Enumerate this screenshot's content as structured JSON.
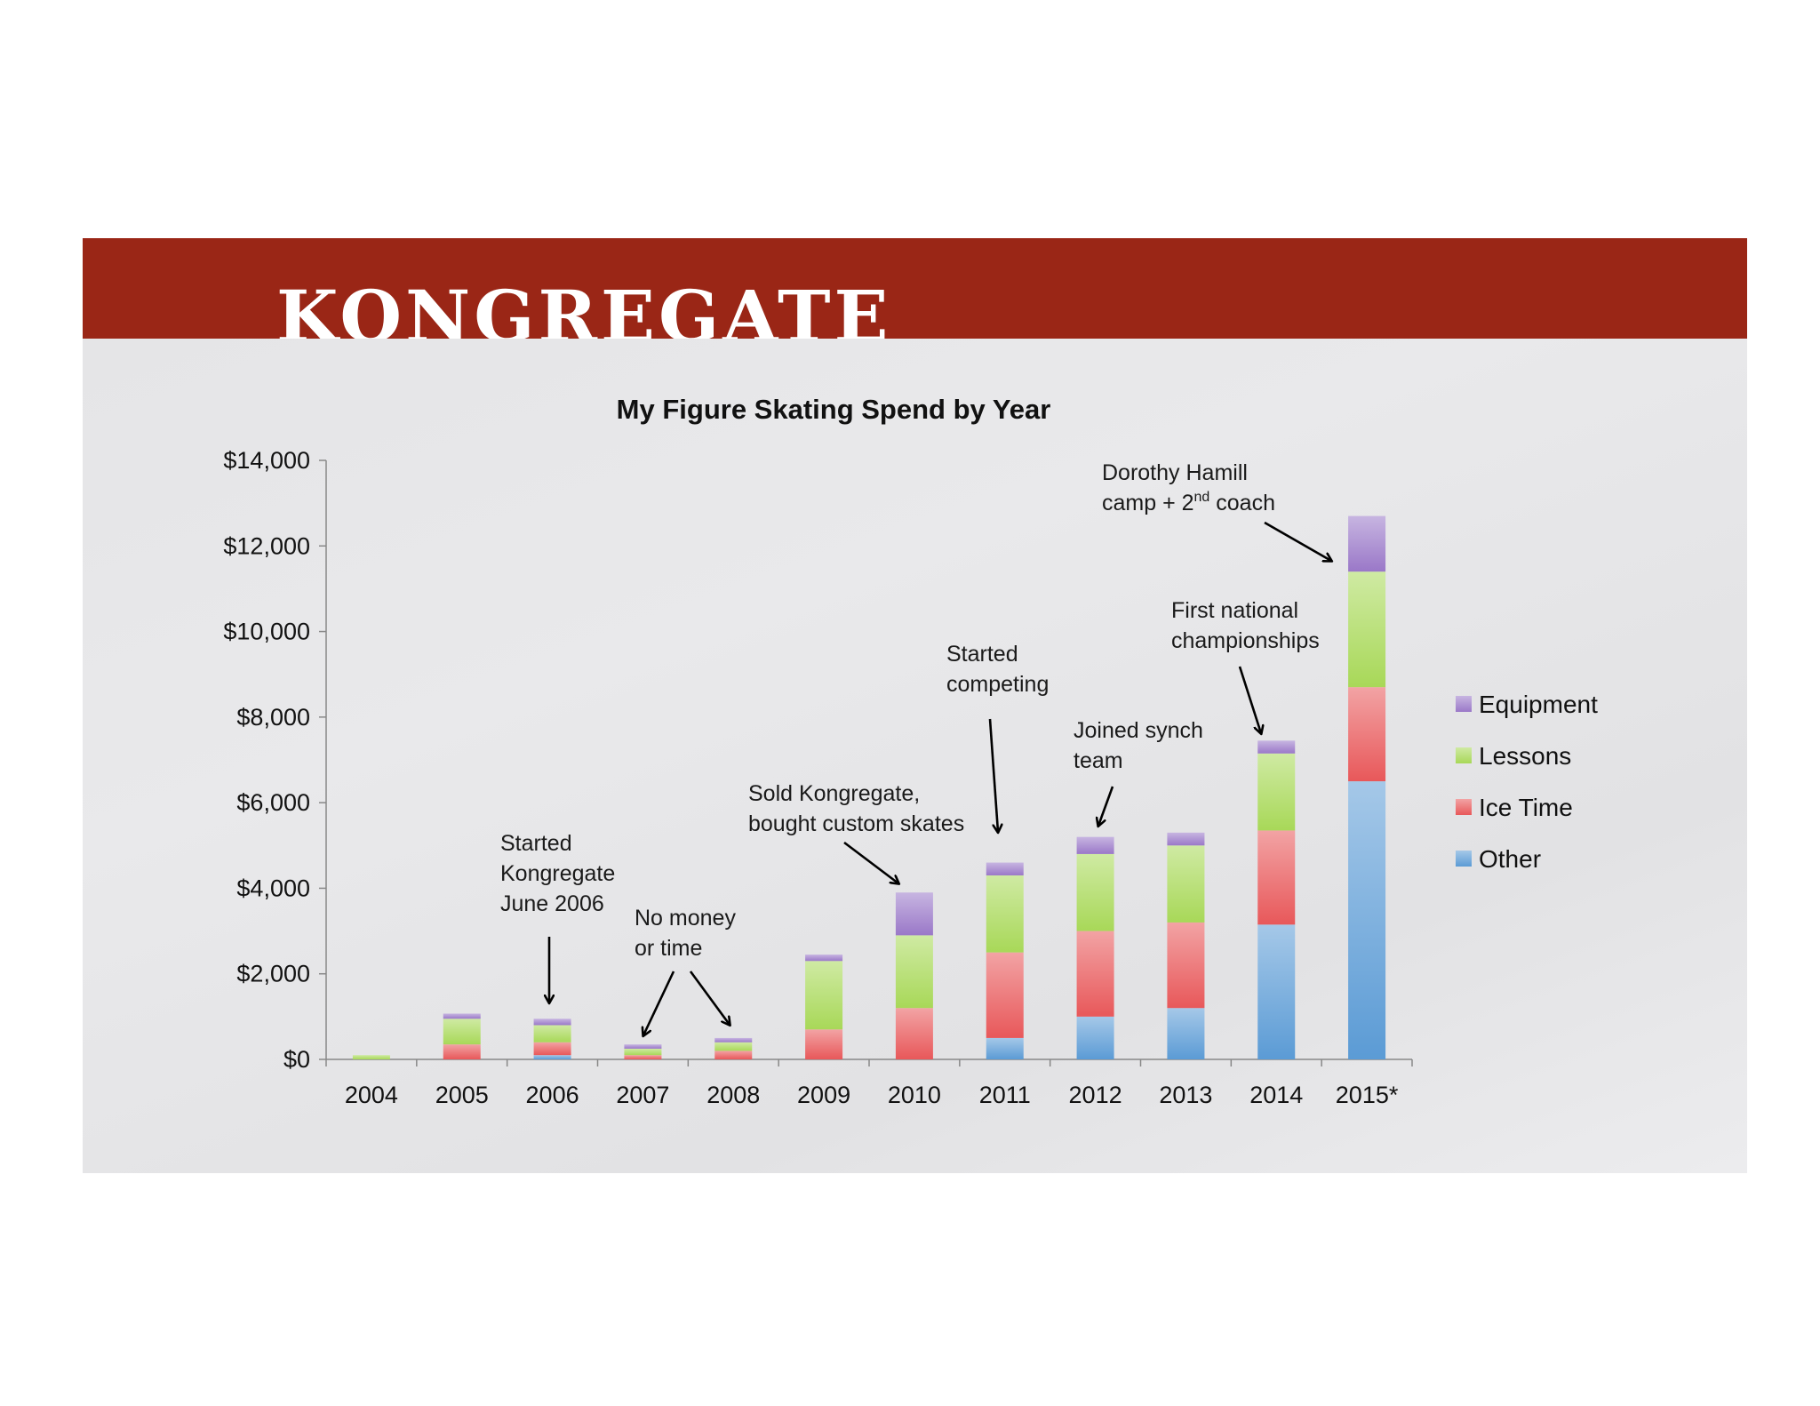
{
  "brand": {
    "logo_text": "KONGREGATE",
    "header_color": "#9a2616"
  },
  "chart_data": {
    "type": "bar",
    "stacked": true,
    "title": "My Figure Skating Spend by Year",
    "xlabel": "",
    "ylabel": "",
    "ylim": [
      0,
      14000
    ],
    "yticks": [
      0,
      2000,
      4000,
      6000,
      8000,
      10000,
      12000,
      14000
    ],
    "ytick_labels": [
      "$0",
      "$2,000",
      "$4,000",
      "$6,000",
      "$8,000",
      "$10,000",
      "$12,000",
      "$14,000"
    ],
    "grid": false,
    "legend_position": "right",
    "categories": [
      "2004",
      "2005",
      "2006",
      "2007",
      "2008",
      "2009",
      "2010",
      "2011",
      "2012",
      "2013",
      "2014",
      "2015*"
    ],
    "series": [
      {
        "name": "Other",
        "color": "#5b9bd5",
        "values": [
          0,
          0,
          100,
          0,
          0,
          0,
          0,
          500,
          1000,
          1200,
          3150,
          6500
        ]
      },
      {
        "name": "Ice Time",
        "color": "#e8585a",
        "values": [
          0,
          350,
          300,
          100,
          200,
          700,
          1200,
          2000,
          2000,
          2000,
          2200,
          2200
        ]
      },
      {
        "name": "Lessons",
        "color": "#a8d858",
        "values": [
          100,
          600,
          400,
          150,
          200,
          1600,
          1700,
          1800,
          1800,
          1800,
          1800,
          2700
        ]
      },
      {
        "name": "Equipment",
        "color": "#9a78c8",
        "values": [
          0,
          120,
          150,
          100,
          100,
          150,
          1000,
          300,
          400,
          300,
          300,
          1300
        ]
      }
    ],
    "annotations": [
      {
        "lines": [
          "Started",
          "Kongregate",
          "June 2006"
        ],
        "target": "2006"
      },
      {
        "lines": [
          "No money",
          "or time"
        ],
        "target": [
          "2007",
          "2008"
        ]
      },
      {
        "lines": [
          "Sold Kongregate,",
          "bought custom skates"
        ],
        "target": "2010"
      },
      {
        "lines": [
          "Started",
          "competing"
        ],
        "target": "2011"
      },
      {
        "lines": [
          "Joined synch",
          "team"
        ],
        "target": "2012"
      },
      {
        "lines": [
          "First national",
          "championships"
        ],
        "target": "2014"
      },
      {
        "lines": [
          "Dorothy Hamill",
          "camp + 2",
          "nd",
          " coach"
        ],
        "target": "2015*"
      }
    ]
  }
}
